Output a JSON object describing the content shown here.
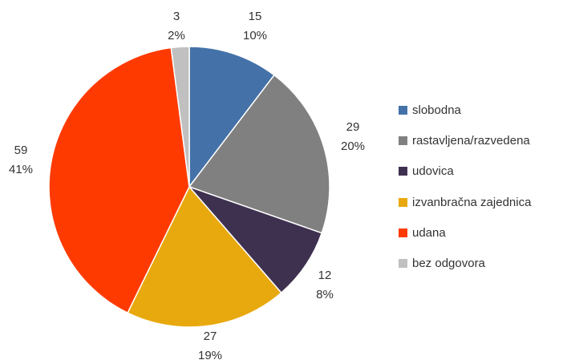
{
  "chart_data": {
    "type": "pie",
    "title": "",
    "slices": [
      {
        "label": "slobodna",
        "value": 15,
        "percent": "10%",
        "color": "#4472A8"
      },
      {
        "label": "rastavljena/razvedena",
        "value": 29,
        "percent": "20%",
        "color": "#808080"
      },
      {
        "label": "udovica",
        "value": 12,
        "percent": "8%",
        "color": "#3E3150"
      },
      {
        "label": "izvanbračna zajednica",
        "value": 27,
        "percent": "19%",
        "color": "#E8A90E"
      },
      {
        "label": "udana",
        "value": 59,
        "percent": "41%",
        "color": "#FF3A00"
      },
      {
        "label": "bez odgovora",
        "value": 3,
        "percent": "2%",
        "color": "#C0C0C0"
      }
    ],
    "legend_position": "right",
    "start_angle": "12 o'clock",
    "direction": "clockwise"
  }
}
